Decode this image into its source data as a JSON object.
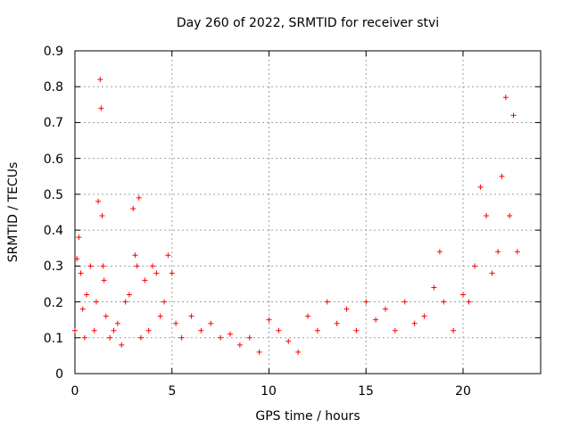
{
  "chart_data": {
    "type": "scatter",
    "title": "Day 260 of 2022, SRMTID for receiver stvi",
    "xlabel": "GPS time / hours",
    "ylabel": "SRMTID / TECUs",
    "xlim": [
      0,
      24
    ],
    "ylim": [
      0,
      0.9
    ],
    "xticks": [
      "0",
      "5",
      "10",
      "15",
      "20"
    ],
    "yticks": [
      "0",
      "0.1",
      "0.2",
      "0.3",
      "0.4",
      "0.5",
      "0.6",
      "0.7",
      "0.8",
      "0.9"
    ],
    "grid": true,
    "marker": "+",
    "color": "#ff0000",
    "series": [
      {
        "name": "SRMTID",
        "x": [
          0.0,
          0.1,
          0.2,
          0.3,
          0.4,
          0.5,
          0.6,
          0.8,
          1.0,
          1.1,
          1.2,
          1.3,
          1.35,
          1.4,
          1.45,
          1.5,
          1.6,
          1.8,
          2.0,
          2.2,
          2.4,
          2.6,
          2.8,
          3.0,
          3.1,
          3.2,
          3.3,
          3.4,
          3.6,
          3.8,
          4.0,
          4.2,
          4.4,
          4.6,
          4.8,
          5.0,
          5.2,
          5.5,
          6.0,
          6.5,
          7.0,
          7.5,
          8.0,
          8.5,
          9.0,
          9.5,
          10.0,
          10.5,
          11.0,
          11.5,
          12.0,
          12.5,
          13.0,
          13.5,
          14.0,
          14.5,
          15.0,
          15.5,
          16.0,
          16.5,
          17.0,
          17.5,
          18.0,
          18.5,
          18.8,
          19.0,
          19.5,
          20.0,
          20.3,
          20.6,
          20.9,
          21.2,
          21.5,
          21.8,
          22.0,
          22.2,
          22.4,
          22.6,
          22.8
        ],
        "y": [
          0.12,
          0.32,
          0.38,
          0.28,
          0.18,
          0.1,
          0.22,
          0.3,
          0.12,
          0.2,
          0.48,
          0.82,
          0.74,
          0.44,
          0.3,
          0.26,
          0.16,
          0.1,
          0.12,
          0.14,
          0.08,
          0.2,
          0.22,
          0.46,
          0.33,
          0.3,
          0.49,
          0.1,
          0.26,
          0.12,
          0.3,
          0.28,
          0.16,
          0.2,
          0.33,
          0.28,
          0.14,
          0.1,
          0.16,
          0.12,
          0.14,
          0.1,
          0.11,
          0.08,
          0.1,
          0.06,
          0.15,
          0.12,
          0.09,
          0.06,
          0.16,
          0.12,
          0.2,
          0.14,
          0.18,
          0.12,
          0.2,
          0.15,
          0.18,
          0.12,
          0.2,
          0.14,
          0.16,
          0.24,
          0.34,
          0.2,
          0.12,
          0.22,
          0.2,
          0.3,
          0.52,
          0.44,
          0.28,
          0.34,
          0.55,
          0.77,
          0.44,
          0.72,
          0.34
        ]
      }
    ]
  }
}
